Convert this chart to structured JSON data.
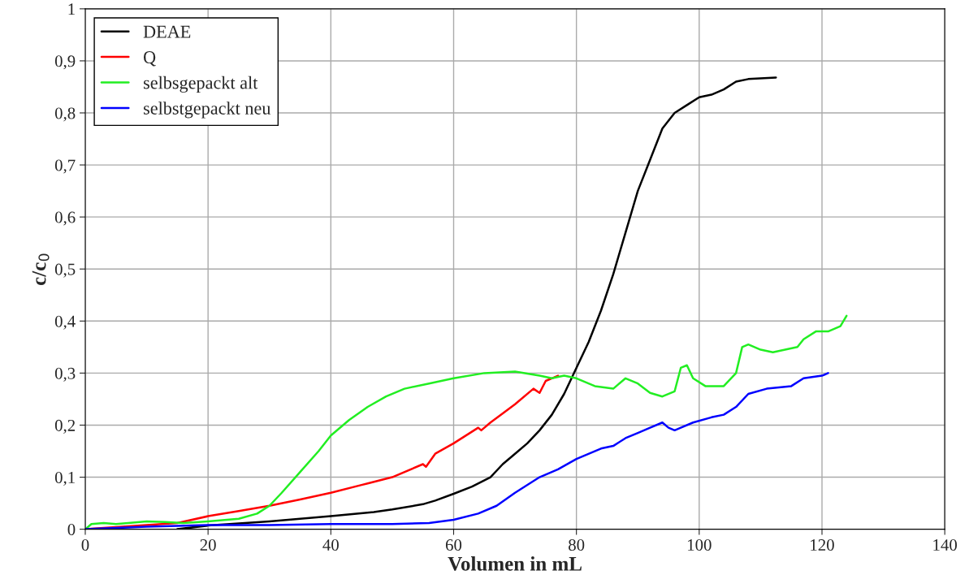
{
  "chart_data": {
    "type": "line",
    "xlabel": "Volumen in mL",
    "ylabel": "c/c$_{0}$",
    "xlim": [
      0,
      140
    ],
    "xticks": [
      0,
      20,
      40,
      60,
      80,
      100,
      120,
      140
    ],
    "ylim": [
      0,
      1
    ],
    "yticks": [
      0,
      {
        "value": 0.1,
        "label": "0,1"
      },
      {
        "value": 0.2,
        "label": "0,2"
      },
      {
        "value": 0.3,
        "label": "0,3"
      },
      {
        "value": 0.4,
        "label": "0,4"
      },
      {
        "value": 0.5,
        "label": "0,5"
      },
      {
        "value": 0.6,
        "label": "0,6"
      },
      {
        "value": 0.7,
        "label": "0,7"
      },
      {
        "value": 0.8,
        "label": "0,8"
      },
      {
        "value": 0.9,
        "label": "0,9"
      },
      1
    ],
    "grid": true,
    "legend": "top left",
    "marker": "none",
    "line_style": "solid",
    "series": [
      {
        "name": "DEAE",
        "color": "#000000",
        "x": [
          15,
          20,
          30,
          40,
          47,
          50,
          55,
          57,
          60,
          63,
          66,
          68,
          70,
          72,
          74,
          76,
          78,
          80,
          82,
          84,
          86,
          88,
          90,
          92,
          94,
          96,
          98,
          100,
          102,
          104,
          106,
          108,
          112.5
        ],
        "values": [
          0,
          0.007,
          0.015,
          0.025,
          0.033,
          0.038,
          0.048,
          0.055,
          0.068,
          0.082,
          0.1,
          0.125,
          0.145,
          0.165,
          0.19,
          0.22,
          0.26,
          0.31,
          0.36,
          0.42,
          0.49,
          0.57,
          0.65,
          0.71,
          0.77,
          0.8,
          0.815,
          0.83,
          0.835,
          0.845,
          0.86,
          0.865,
          0.868
        ]
      },
      {
        "name": "Q",
        "color": "#ff0000",
        "x": [
          0,
          10,
          15,
          20,
          25,
          30,
          35,
          40,
          45,
          46,
          50,
          55,
          55.5,
          57,
          60,
          64,
          64.5,
          66,
          70,
          73,
          74,
          75,
          76,
          77
        ],
        "values": [
          0,
          0.008,
          0.012,
          0.025,
          0.035,
          0.045,
          0.057,
          0.07,
          0.085,
          0.088,
          0.1,
          0.125,
          0.12,
          0.145,
          0.165,
          0.195,
          0.19,
          0.205,
          0.24,
          0.27,
          0.262,
          0.285,
          0.29,
          0.295
        ]
      },
      {
        "name": "selbsgepackt alt",
        "color": "#22ee22",
        "x": [
          0,
          1,
          3,
          5,
          7,
          10,
          13,
          16,
          20,
          25,
          28,
          30,
          32,
          35,
          38,
          40,
          43,
          46,
          49,
          52,
          56,
          60,
          65,
          70,
          74,
          76,
          78,
          80,
          83,
          86,
          88,
          90,
          92,
          94,
          96,
          97,
          98,
          99,
          101,
          104,
          106,
          107,
          108,
          110,
          112,
          114,
          116,
          117,
          119,
          121,
          123,
          124
        ],
        "values": [
          0,
          0.01,
          0.012,
          0.01,
          0.012,
          0.015,
          0.014,
          0.012,
          0.015,
          0.02,
          0.03,
          0.045,
          0.07,
          0.11,
          0.15,
          0.18,
          0.21,
          0.235,
          0.255,
          0.27,
          0.28,
          0.29,
          0.3,
          0.303,
          0.295,
          0.29,
          0.295,
          0.29,
          0.275,
          0.27,
          0.29,
          0.28,
          0.262,
          0.255,
          0.265,
          0.31,
          0.315,
          0.29,
          0.275,
          0.275,
          0.3,
          0.35,
          0.355,
          0.345,
          0.34,
          0.345,
          0.35,
          0.365,
          0.38,
          0.38,
          0.39,
          0.41
        ]
      },
      {
        "name": "selbstgepackt neu",
        "color": "#0000ff",
        "x": [
          0,
          10,
          20,
          30,
          40,
          50,
          56,
          60,
          64,
          67,
          70,
          74,
          77,
          80,
          84,
          86,
          88,
          90,
          92,
          94,
          95,
          96,
          97,
          99,
          102,
          104,
          106,
          108,
          111,
          115,
          117,
          120,
          121
        ],
        "values": [
          0,
          0.005,
          0.008,
          0.008,
          0.01,
          0.01,
          0.012,
          0.018,
          0.03,
          0.045,
          0.07,
          0.1,
          0.115,
          0.135,
          0.155,
          0.16,
          0.175,
          0.185,
          0.195,
          0.205,
          0.195,
          0.19,
          0.195,
          0.205,
          0.215,
          0.22,
          0.235,
          0.26,
          0.27,
          0.275,
          0.29,
          0.295,
          0.3
        ]
      }
    ]
  }
}
